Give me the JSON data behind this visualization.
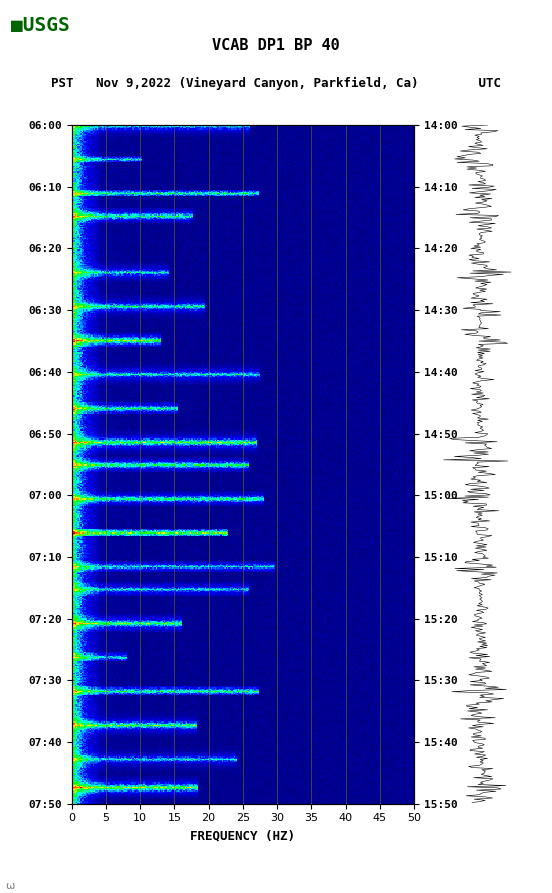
{
  "title_line1": "VCAB DP1 BP 40",
  "title_line2": "PST   Nov 9,2022 (Vineyard Canyon, Parkfield, Ca)        UTC",
  "xlabel": "FREQUENCY (HZ)",
  "freq_min": 0,
  "freq_max": 50,
  "time_start_pst": "06:00",
  "time_end_pst": "07:50",
  "time_start_utc": "14:00",
  "time_end_utc": "15:50",
  "pst_ticks": [
    "06:00",
    "06:10",
    "06:20",
    "06:30",
    "06:40",
    "06:50",
    "07:00",
    "07:10",
    "07:20",
    "07:30",
    "07:40",
    "07:50"
  ],
  "utc_ticks": [
    "14:00",
    "14:10",
    "14:20",
    "14:30",
    "14:40",
    "14:50",
    "15:00",
    "15:10",
    "15:20",
    "15:30",
    "15:40",
    "15:50"
  ],
  "freq_ticks": [
    0,
    5,
    10,
    15,
    20,
    25,
    30,
    35,
    40,
    45,
    50
  ],
  "vert_grid_lines": [
    5,
    10,
    15,
    20,
    25,
    30,
    35,
    40,
    45
  ],
  "bg_color": "#000080",
  "spectrogram_seed": 42,
  "n_time": 600,
  "n_freq": 250,
  "waveform_color": "#000000",
  "logo_color": "#006400"
}
